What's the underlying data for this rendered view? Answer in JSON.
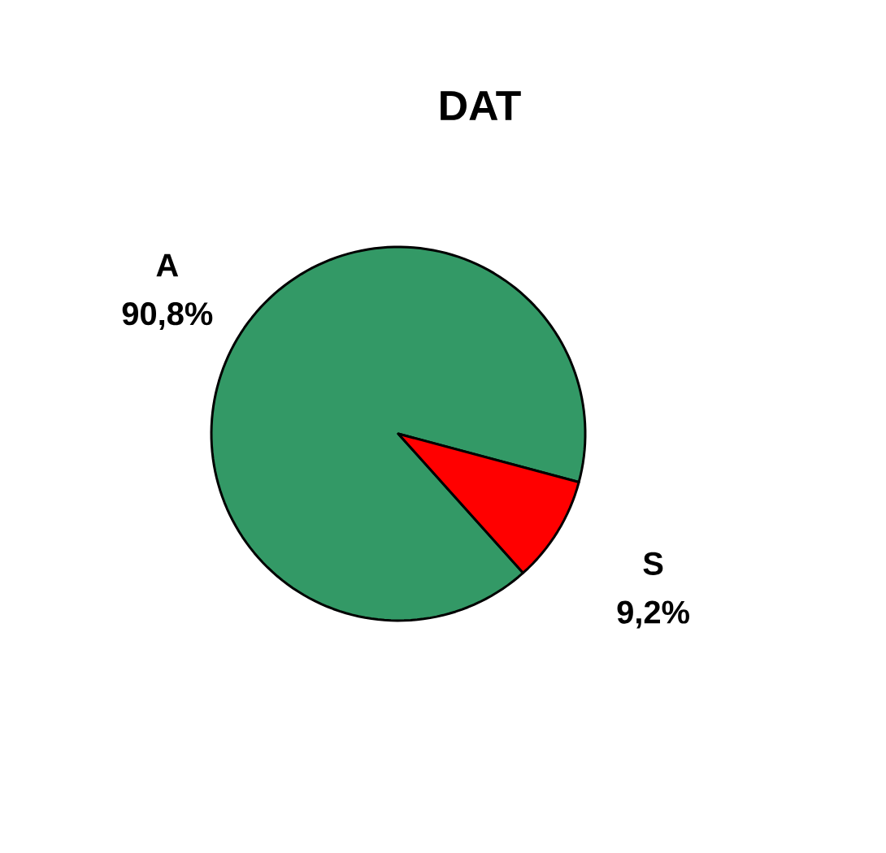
{
  "chart_data": {
    "type": "pie",
    "title": "DAT",
    "categories": [
      "A",
      "S"
    ],
    "values": [
      90.8,
      9.2
    ],
    "colors": [
      "#339966",
      "#ff0000"
    ],
    "value_labels": [
      "90,8%",
      "9,2%"
    ]
  }
}
